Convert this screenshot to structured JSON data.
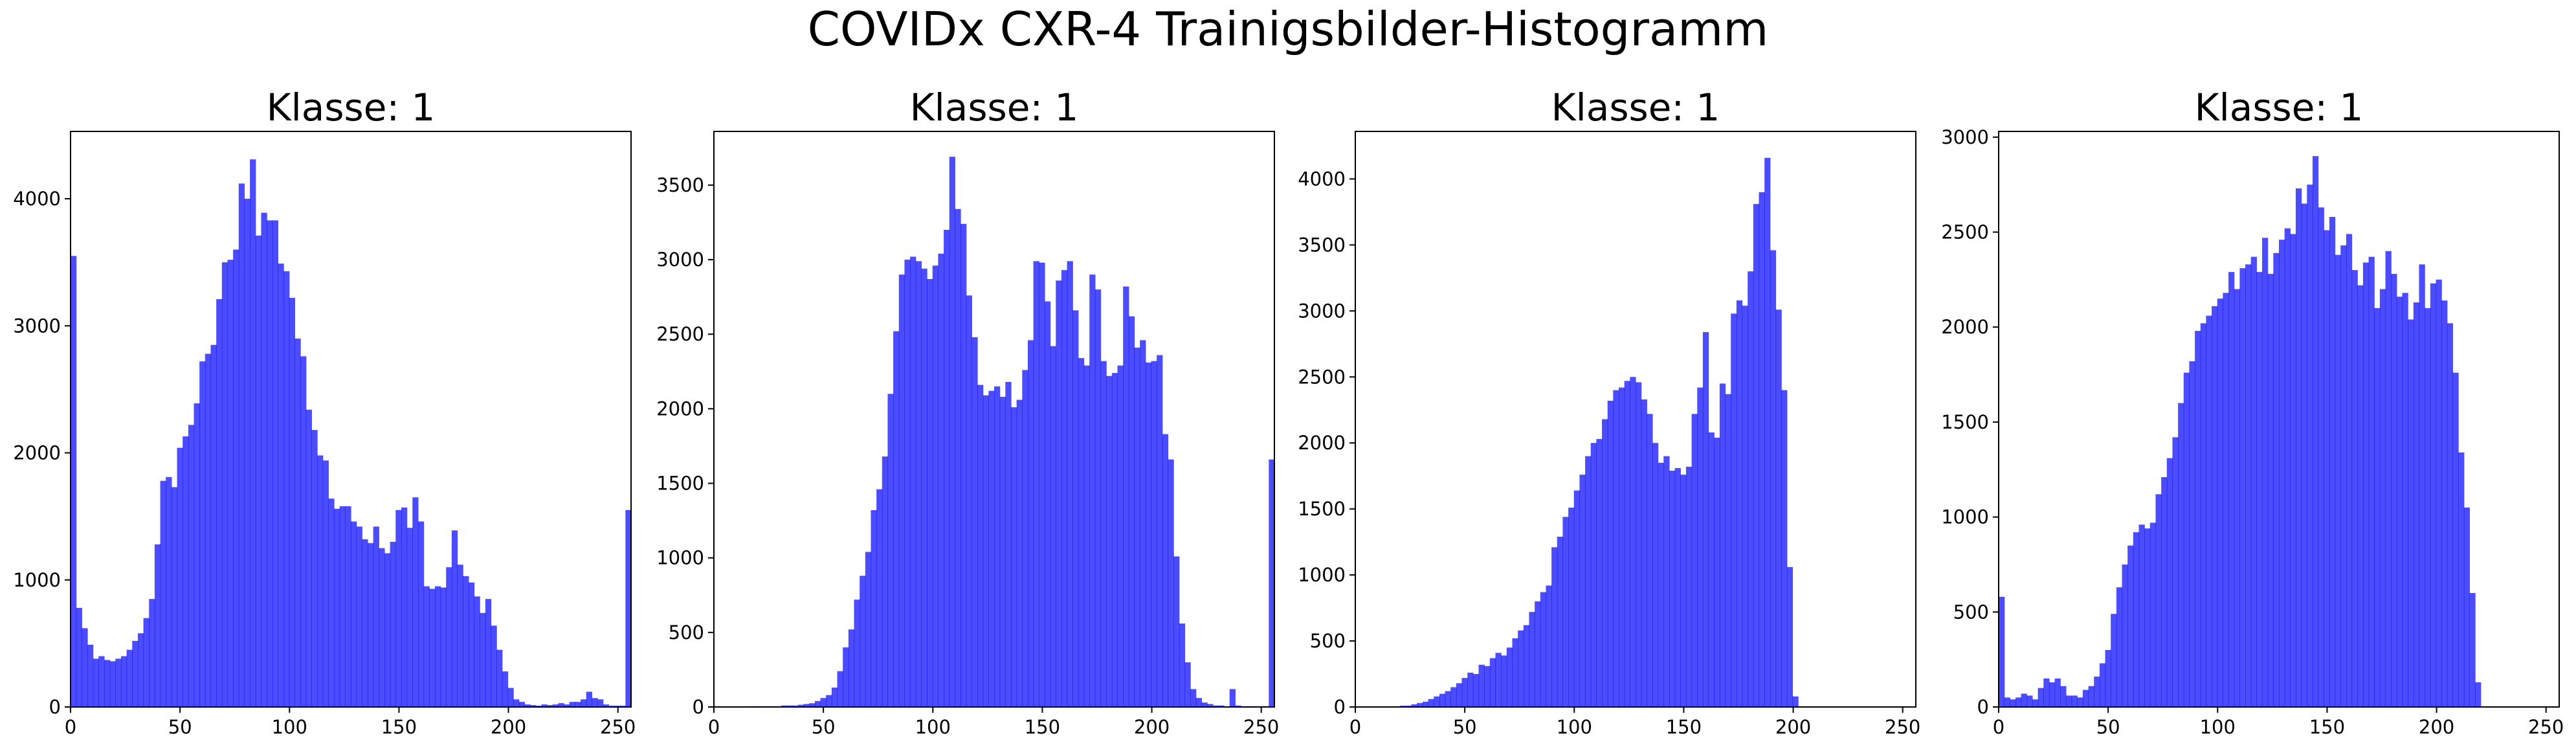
{
  "figure": {
    "suptitle": "COVIDx CXR-4 Trainigsbilder-Histogramm"
  },
  "chart_data": [
    {
      "type": "bar",
      "title": "Klasse: 1",
      "xlabel": "",
      "ylabel": "",
      "xlim": [
        0,
        256
      ],
      "ylim": [
        0,
        4530
      ],
      "xticks": [
        0,
        50,
        100,
        150,
        200,
        250
      ],
      "yticks": [
        0,
        1000,
        2000,
        3000,
        4000
      ],
      "bin_width": 2.56,
      "color": "#0000ff",
      "alpha": 0.7,
      "grid": false,
      "values": [
        3550,
        780,
        620,
        490,
        380,
        400,
        370,
        360,
        380,
        400,
        450,
        520,
        580,
        700,
        850,
        1280,
        1780,
        1810,
        1730,
        2040,
        2130,
        2220,
        2390,
        2720,
        2780,
        2850,
        3210,
        3500,
        3520,
        3600,
        4120,
        4000,
        4310,
        3710,
        3890,
        3830,
        3830,
        3490,
        3430,
        3220,
        2900,
        2760,
        2340,
        2180,
        1980,
        1940,
        1640,
        1560,
        1580,
        1580,
        1460,
        1420,
        1320,
        1290,
        1420,
        1250,
        1210,
        1300,
        1550,
        1570,
        1410,
        1650,
        1460,
        950,
        930,
        950,
        940,
        1100,
        1390,
        1120,
        1030,
        980,
        870,
        740,
        850,
        640,
        450,
        280,
        150,
        60,
        40,
        20,
        15,
        10,
        20,
        15,
        20,
        30,
        20,
        40,
        40,
        60,
        120,
        70,
        60,
        20,
        10,
        10,
        10,
        1550
      ]
    },
    {
      "type": "bar",
      "title": "Klasse: 1",
      "xlabel": "",
      "ylabel": "",
      "xlim": [
        0,
        256
      ],
      "ylim": [
        0,
        3860
      ],
      "xticks": [
        0,
        50,
        100,
        150,
        200,
        250
      ],
      "yticks": [
        0,
        500,
        1000,
        1500,
        2000,
        2500,
        3000,
        3500
      ],
      "bin_width": 2.56,
      "color": "#0000ff",
      "alpha": 0.7,
      "grid": false,
      "values": [
        0,
        0,
        0,
        0,
        0,
        0,
        5,
        5,
        5,
        5,
        5,
        5,
        10,
        10,
        10,
        15,
        20,
        25,
        40,
        60,
        80,
        130,
        240,
        400,
        520,
        720,
        880,
        1040,
        1320,
        1460,
        1680,
        2100,
        2520,
        2900,
        3000,
        3020,
        2990,
        2940,
        2870,
        2960,
        3040,
        3200,
        3690,
        3340,
        3240,
        2760,
        2480,
        2160,
        2090,
        2120,
        2150,
        2080,
        2180,
        2010,
        2060,
        2260,
        2460,
        2990,
        2980,
        2720,
        2420,
        2860,
        2930,
        2990,
        2660,
        2340,
        2290,
        2900,
        2800,
        2320,
        2220,
        2240,
        2290,
        2820,
        2620,
        2410,
        2460,
        2310,
        2320,
        2360,
        1830,
        1660,
        1010,
        560,
        300,
        120,
        60,
        30,
        20,
        10,
        10,
        5,
        120,
        10,
        5,
        5,
        5,
        5,
        5,
        1660
      ]
    },
    {
      "type": "bar",
      "title": "Klasse: 1",
      "xlabel": "",
      "ylabel": "",
      "xlim": [
        0,
        256
      ],
      "ylim": [
        0,
        4360
      ],
      "xticks": [
        0,
        50,
        100,
        150,
        200,
        250
      ],
      "yticks": [
        0,
        500,
        1000,
        1500,
        2000,
        2500,
        3000,
        3500,
        4000
      ],
      "bin_width": 2.56,
      "color": "#0000ff",
      "alpha": 0.7,
      "grid": false,
      "values": [
        0,
        0,
        0,
        0,
        0,
        0,
        2,
        5,
        10,
        10,
        20,
        30,
        40,
        60,
        80,
        100,
        120,
        150,
        180,
        220,
        260,
        250,
        320,
        310,
        370,
        410,
        390,
        450,
        520,
        580,
        620,
        720,
        800,
        870,
        920,
        1210,
        1290,
        1440,
        1510,
        1640,
        1760,
        1900,
        2000,
        2030,
        2180,
        2320,
        2400,
        2420,
        2470,
        2500,
        2460,
        2330,
        2220,
        2000,
        1850,
        1900,
        1790,
        1810,
        1760,
        1820,
        2220,
        2420,
        2840,
        2080,
        2040,
        2450,
        2370,
        2980,
        3080,
        3040,
        3300,
        3810,
        3900,
        4160,
        3460,
        3010,
        2400,
        1060,
        80,
        0,
        0,
        0,
        0,
        0,
        0,
        0,
        0,
        0,
        0,
        0,
        0,
        0,
        0,
        0,
        0,
        0,
        0,
        0,
        0,
        0
      ]
    },
    {
      "type": "bar",
      "title": "Klasse: 1",
      "xlabel": "",
      "ylabel": "",
      "xlim": [
        0,
        256
      ],
      "ylim": [
        0,
        3030
      ],
      "xticks": [
        0,
        50,
        100,
        150,
        200,
        250
      ],
      "yticks": [
        0,
        500,
        1000,
        1500,
        2000,
        2500,
        3000
      ],
      "bin_width": 2.56,
      "color": "#0000ff",
      "alpha": 0.7,
      "grid": false,
      "values": [
        580,
        50,
        40,
        50,
        70,
        60,
        40,
        100,
        150,
        130,
        150,
        110,
        60,
        60,
        50,
        90,
        110,
        160,
        230,
        300,
        490,
        630,
        750,
        850,
        920,
        960,
        940,
        970,
        1120,
        1210,
        1310,
        1420,
        1600,
        1760,
        1820,
        1980,
        2020,
        2060,
        2110,
        2150,
        2180,
        2290,
        2200,
        2310,
        2330,
        2370,
        2290,
        2470,
        2280,
        2390,
        2460,
        2520,
        2490,
        2730,
        2650,
        2750,
        2900,
        2630,
        2510,
        2580,
        2380,
        2430,
        2490,
        2300,
        2220,
        2340,
        2370,
        2100,
        2200,
        2400,
        2280,
        2160,
        2180,
        2040,
        2130,
        2330,
        2100,
        2230,
        2250,
        2140,
        2020,
        1760,
        1340,
        1050,
        600,
        130,
        0,
        0,
        0,
        0,
        0,
        0,
        0,
        0,
        0,
        0,
        0,
        0,
        0,
        0
      ]
    }
  ]
}
